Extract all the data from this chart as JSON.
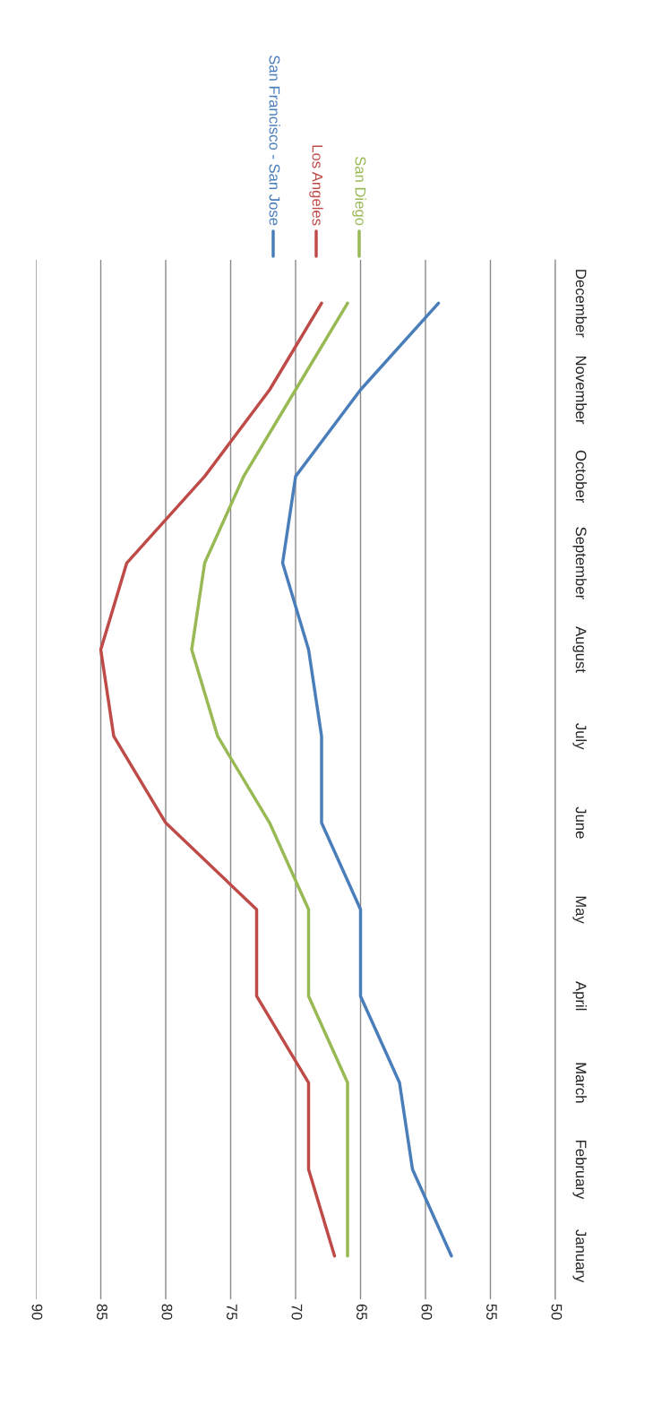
{
  "chart_data": {
    "type": "line",
    "orientation": "horizontal",
    "categories": [
      "December",
      "November",
      "October",
      "September",
      "August",
      "July",
      "June",
      "May",
      "April",
      "March",
      "February",
      "January"
    ],
    "series": [
      {
        "name": "San Francisco - San Jose",
        "color": "#4a7ebb",
        "values": [
          59,
          65,
          70,
          71,
          69,
          68,
          68,
          65,
          65,
          62,
          61,
          58
        ]
      },
      {
        "name": "Los Angeles",
        "color": "#be4b48",
        "values": [
          68,
          72,
          77,
          83,
          85,
          84,
          80,
          73,
          73,
          69,
          69,
          67
        ]
      },
      {
        "name": "San Diego",
        "color": "#98b954",
        "values": [
          66,
          70,
          74,
          77,
          78,
          76,
          72,
          69,
          69,
          66,
          66,
          66
        ]
      }
    ],
    "xlim": [
      90,
      50
    ],
    "xticks": [
      90,
      85,
      80,
      75,
      70,
      65,
      60,
      55,
      50
    ],
    "grid": "x",
    "legend": "top",
    "marker": "none",
    "line_style": "solid"
  }
}
